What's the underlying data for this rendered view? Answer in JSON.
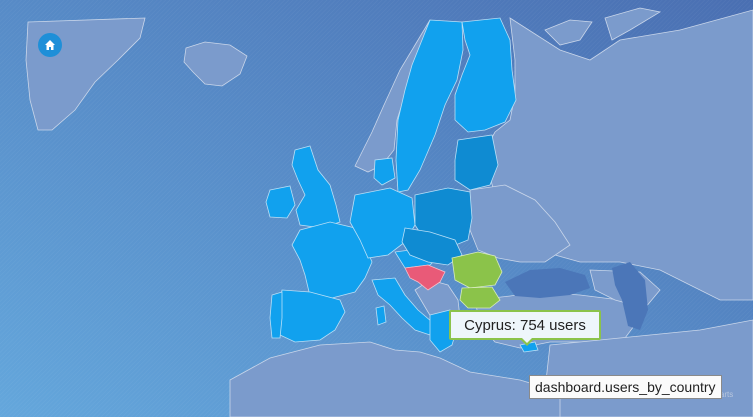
{
  "map": {
    "colors": {
      "sea_start": "#5f9fd7",
      "sea_end": "#4b76b8",
      "non_eu_land": "#7d9ccc",
      "eu_member": "#11a1ee",
      "eu_dark": "#0f8bd2",
      "romania_bulgaria": "#8bc34a",
      "croatia": "#e95a78",
      "other_land_border": "#c9d6ea"
    },
    "highlighted": [
      {
        "country": "Cyprus",
        "value": 754,
        "unit": "users"
      },
      {
        "country": "Croatia",
        "state": "highlight-red"
      },
      {
        "country": "Romania",
        "state": "highlight-green"
      },
      {
        "country": "Bulgaria",
        "state": "highlight-green"
      }
    ]
  },
  "controls": {
    "home_icon": "home-icon"
  },
  "tooltip": {
    "text": "Cyprus: 754 users"
  },
  "footer": {
    "credits": "© map by amCharts",
    "dashboard_label": "dashboard.users_by_country"
  }
}
